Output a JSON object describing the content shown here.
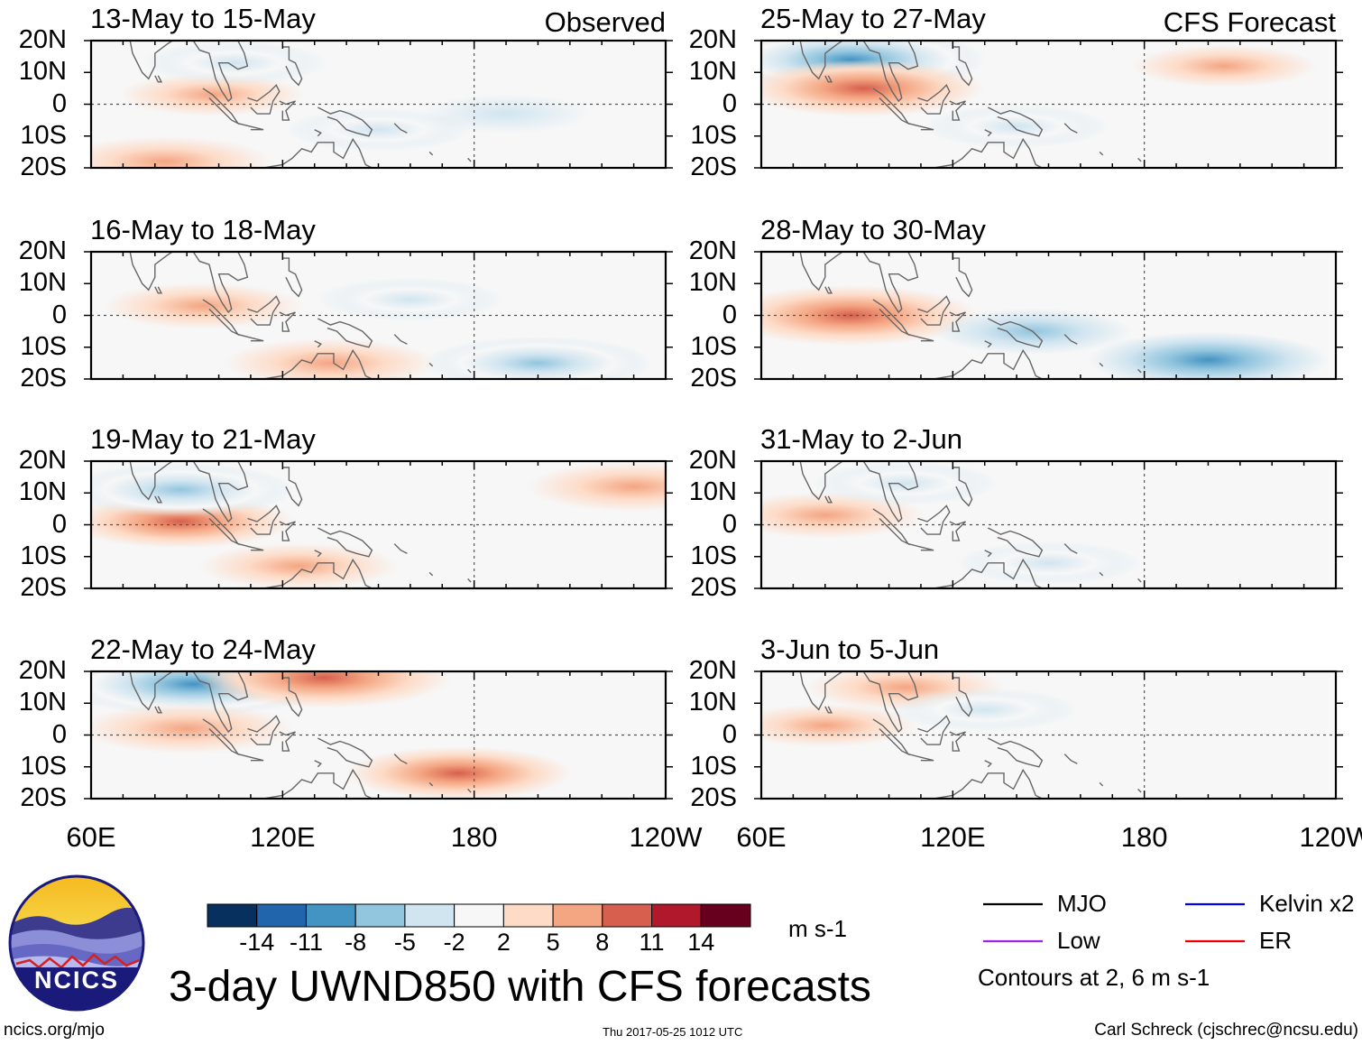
{
  "chart_data": {
    "type": "heatmap",
    "title": "3-day UWND850 with CFS forecasts",
    "variable": "UWND850",
    "units": "m s-1",
    "x_ticks": [
      "60E",
      "120E",
      "180",
      "120W"
    ],
    "y_ticks": [
      "20N",
      "10N",
      "0",
      "10S",
      "20S"
    ],
    "x_range_deg_east": [
      60,
      240
    ],
    "y_range_deg": [
      -20,
      20
    ],
    "columns": [
      {
        "header": "Observed",
        "panels": [
          "13-May to 15-May",
          "16-May to 18-May",
          "19-May to 21-May",
          "22-May to 24-May"
        ]
      },
      {
        "header": "CFS Forecast",
        "panels": [
          "25-May to 27-May",
          "28-May to 30-May",
          "31-May to 2-Jun",
          "3-Jun to 5-Jun"
        ]
      }
    ],
    "colorbar": {
      "ticks": [
        "-14",
        "-11",
        "-8",
        "-5",
        "-2",
        "2",
        "5",
        "8",
        "11",
        "14"
      ],
      "colors": [
        "#08305f",
        "#2166ac",
        "#4393c3",
        "#92c5de",
        "#d1e5f0",
        "#f7f7f7",
        "#fddbc7",
        "#f4a582",
        "#d6604d",
        "#b2182b",
        "#67001f"
      ]
    },
    "legend": {
      "items": [
        {
          "label": "MJO",
          "color": "#000000"
        },
        {
          "label": "Kelvin x2",
          "color": "#0000ee"
        },
        {
          "label": "Low",
          "color": "#a020f0"
        },
        {
          "label": "ER",
          "color": "#ee0000"
        }
      ],
      "note": "Contours at 2, 6 m s-1"
    },
    "anomaly_hotspots": [
      {
        "panel": 0,
        "features": [
          {
            "lon": 83,
            "lat": -18,
            "value": 7
          },
          {
            "lon": 98,
            "lat": 3,
            "value": 5
          },
          {
            "lon": 105,
            "lat": 13,
            "value": -5
          },
          {
            "lon": 150,
            "lat": -8,
            "value": -5
          },
          {
            "lon": 190,
            "lat": -3,
            "value": -4
          }
        ]
      },
      {
        "panel": 1,
        "features": [
          {
            "lon": 95,
            "lat": 3,
            "value": 6
          },
          {
            "lon": 135,
            "lat": -15,
            "value": 7
          },
          {
            "lon": 160,
            "lat": 5,
            "value": -5
          },
          {
            "lon": 200,
            "lat": -15,
            "value": -8
          }
        ]
      },
      {
        "panel": 2,
        "features": [
          {
            "lon": 88,
            "lat": 1,
            "value": 8
          },
          {
            "lon": 88,
            "lat": 11,
            "value": -8
          },
          {
            "lon": 125,
            "lat": -13,
            "value": 6
          },
          {
            "lon": 230,
            "lat": 12,
            "value": 7
          }
        ]
      },
      {
        "panel": 3,
        "features": [
          {
            "lon": 92,
            "lat": 16,
            "value": -11
          },
          {
            "lon": 90,
            "lat": 2,
            "value": 7
          },
          {
            "lon": 133,
            "lat": 18,
            "value": 10
          },
          {
            "lon": 175,
            "lat": -12,
            "value": 8
          }
        ]
      },
      {
        "panel": 4,
        "features": [
          {
            "lon": 88,
            "lat": 14,
            "value": -11
          },
          {
            "lon": 92,
            "lat": 5,
            "value": 9
          },
          {
            "lon": 205,
            "lat": 12,
            "value": 5
          },
          {
            "lon": 140,
            "lat": -7,
            "value": -5
          }
        ]
      },
      {
        "panel": 5,
        "features": [
          {
            "lon": 88,
            "lat": 0,
            "value": 10
          },
          {
            "lon": 200,
            "lat": -14,
            "value": -9
          },
          {
            "lon": 145,
            "lat": -5,
            "value": -6
          }
        ]
      },
      {
        "panel": 6,
        "features": [
          {
            "lon": 80,
            "lat": 3,
            "value": 6
          },
          {
            "lon": 105,
            "lat": 13,
            "value": -5
          },
          {
            "lon": 150,
            "lat": -12,
            "value": -5
          }
        ]
      },
      {
        "panel": 7,
        "features": [
          {
            "lon": 80,
            "lat": 3,
            "value": 5
          },
          {
            "lon": 105,
            "lat": 15,
            "value": 6
          },
          {
            "lon": 130,
            "lat": 8,
            "value": -5
          }
        ]
      }
    ]
  },
  "footer": {
    "logo_text": "NCICS",
    "url": "ncics.org/mjo",
    "timestamp": "Thu 2017-05-25 1012 UTC",
    "author": "Carl Schreck (cjschrec@ncsu.edu)"
  }
}
